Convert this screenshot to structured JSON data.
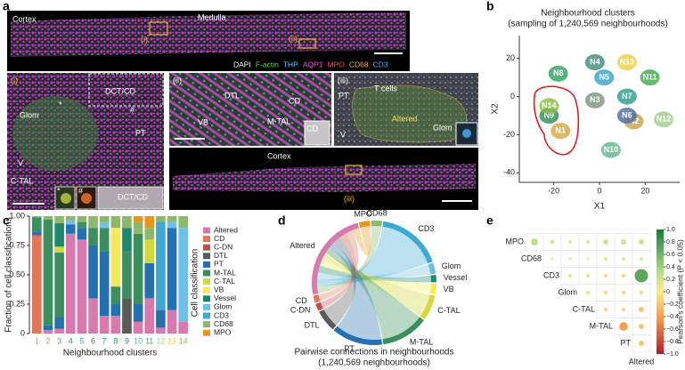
{
  "panel_letters": [
    "a",
    "b",
    "c",
    "d",
    "e"
  ],
  "image_panel": {
    "overview": [
      "Cortex",
      "Medulla",
      "(i)",
      "(ii)"
    ],
    "channels": {
      "names": [
        "DAPI",
        "F-actin",
        "THP",
        "AQP1",
        "MPO",
        "CD68",
        "CD3"
      ],
      "colors": [
        "#ffffff",
        "#57e05a",
        "#62c8ff",
        "#ff54e4",
        "#ff4d4d",
        "#ffb13b",
        "#49b3ff"
      ]
    },
    "panel_i": [
      "(i)",
      "DCT/CD",
      "Glom",
      "*",
      "#",
      "PT",
      "V",
      "C-TAL",
      "*",
      "#",
      "DCT/CD"
    ],
    "panel_ii": [
      "(ii)",
      "DTL",
      "CD",
      "M-TAL",
      "VB",
      "CD"
    ],
    "panel_iii": [
      "(iii)",
      "PT",
      "T cells",
      "Altered",
      "V",
      "Glom"
    ],
    "cortex_strip": [
      "Cortex",
      "(iii)"
    ]
  },
  "chart_data": [
    {
      "type": "scatter",
      "title": "Neighbourhood clusters",
      "subtitle": "(sampling of 1,240,569 neighbourhoods)",
      "x_label": "X1",
      "y_label": "X2",
      "categories": [
        "N1",
        "N2",
        "N3",
        "N4",
        "N5",
        "N6",
        "N7",
        "N8",
        "N9",
        "N10",
        "N11",
        "N12",
        "N13",
        "N14"
      ],
      "x": [
        -17,
        15,
        -2,
        -2,
        2,
        12,
        12,
        -18,
        -22,
        5,
        22,
        28,
        12,
        -22
      ],
      "values": [
        -18,
        -13,
        -2,
        18,
        10,
        -10,
        0,
        12,
        -10,
        -28,
        10,
        -12,
        18,
        -5
      ],
      "colors": [
        "#d4a83a",
        "#c8a24a",
        "#7a927a",
        "#3f8a7a",
        "#3aa0c8",
        "#4a6a9a",
        "#2a9a8a",
        "#2aa35a",
        "#2e8b57",
        "#5ab88a",
        "#3daa4a",
        "#9fd08a",
        "#f0d03a",
        "#8fb84a"
      ],
      "xlim": [
        -35,
        35
      ],
      "ylim": [
        -45,
        32
      ],
      "xticks": [
        -20,
        0,
        20
      ],
      "yticks": [
        -40,
        -20,
        0,
        20
      ]
    },
    {
      "type": "stacked_bar",
      "y_label": "Fraction of cell classifications",
      "x_label": "Neighbourhood clusters",
      "legend_title": "Cell classification",
      "categories": [
        "1",
        "2",
        "3",
        "4",
        "5",
        "6",
        "7",
        "8",
        "9",
        "10",
        "11",
        "12",
        "13",
        "14"
      ],
      "ylim": [
        0,
        1
      ],
      "yticks": [
        0,
        0.25,
        {
          "value": 0.5,
          "label": "0.50"
        },
        0.75,
        {
          "value": 1,
          "label": "1.00"
        }
      ],
      "series": [
        {
          "name": "Altered",
          "color": "#d87aae",
          "values": [
            0,
            0.03,
            0.04,
            0.85,
            0.8,
            0.3,
            0.15,
            0.15,
            0,
            0.1,
            0.3,
            0.05,
            0.2,
            0.1
          ]
        },
        {
          "name": "CD",
          "color": "#e0775a",
          "values": [
            0.83,
            0,
            0,
            0,
            0,
            0,
            0,
            0,
            0,
            0,
            0,
            0,
            0,
            0
          ]
        },
        {
          "name": "C-DN",
          "color": "#c0504d",
          "values": [
            0.01,
            0,
            0,
            0,
            0,
            0,
            0,
            0,
            0,
            0,
            0,
            0,
            0,
            0
          ]
        },
        {
          "name": "DTL",
          "color": "#5a5a5a",
          "values": [
            0,
            0,
            0,
            0,
            0,
            0,
            0,
            0,
            0.3,
            0,
            0,
            0,
            0,
            0
          ]
        },
        {
          "name": "PT",
          "color": "#2470b0",
          "values": [
            0.03,
            0.04,
            0.1,
            0.08,
            0.1,
            0.45,
            0.55,
            0.1,
            0,
            0.15,
            0.3,
            0.15,
            0.7,
            0
          ]
        },
        {
          "name": "M-TAL",
          "color": "#3a8f5c",
          "values": [
            0.12,
            0.9,
            0.55,
            0,
            0.05,
            0.15,
            0.2,
            0.15,
            0.4,
            0.6,
            0,
            0,
            0,
            0
          ]
        },
        {
          "name": "C-TAL",
          "color": "#d4d83a",
          "values": [
            0,
            0,
            0.05,
            0,
            0,
            0,
            0,
            0,
            0,
            0,
            0.2,
            0,
            0,
            0
          ]
        },
        {
          "name": "VB",
          "color": "#f5ea5c",
          "values": [
            0,
            0,
            0,
            0,
            0,
            0,
            0,
            0.5,
            0,
            0,
            0,
            0,
            0,
            0
          ]
        },
        {
          "name": "Vessel",
          "color": "#1b8a6b",
          "values": [
            0,
            0,
            0.2,
            0,
            0,
            0,
            0,
            0,
            0.2,
            0,
            0,
            0,
            0,
            0
          ]
        },
        {
          "name": "Glom",
          "color": "#6ec1e4",
          "values": [
            0,
            0,
            0,
            0.03,
            0,
            0,
            0.05,
            0,
            0,
            0,
            0,
            0,
            0.05,
            0.8
          ]
        },
        {
          "name": "CD3",
          "color": "#3fa9d6",
          "values": [
            0,
            0,
            0,
            0,
            0,
            0,
            0,
            0,
            0,
            0,
            0,
            0.75,
            0,
            0
          ]
        },
        {
          "name": "CD68",
          "color": "#8db86b",
          "values": [
            0.01,
            0.03,
            0.06,
            0.04,
            0.05,
            0.1,
            0.05,
            0.1,
            0.1,
            0.1,
            0.1,
            0.05,
            0.05,
            0.1
          ]
        },
        {
          "name": "MPO",
          "color": "#e8951b",
          "values": [
            0,
            0,
            0,
            0,
            0,
            0,
            0,
            0,
            0,
            0.05,
            0.1,
            0,
            0,
            0
          ]
        }
      ]
    },
    {
      "type": "chord",
      "title": "Pairwise connections in neighbourhoods",
      "subtitle": "(1,240,569 neighbourhoods)",
      "categories": [
        "CD68",
        "CD3",
        "Glom",
        "Vessel",
        "VB",
        "C-TAL",
        "M-TAL",
        "PT",
        "DTL",
        "C-DN",
        "CD",
        "Altered",
        "MPO"
      ],
      "values": [
        3,
        18,
        3,
        2,
        3,
        7,
        13,
        14,
        6,
        2,
        2,
        25,
        3
      ],
      "colors": [
        "#8db86b",
        "#3fa9d6",
        "#6ec1e4",
        "#1b8a6b",
        "#f5ea5c",
        "#d4d83a",
        "#3a8f5c",
        "#2470b0",
        "#5a5a5a",
        "#c0504d",
        "#e0775a",
        "#d87aae",
        "#e8951b"
      ]
    },
    {
      "type": "correlation",
      "labels": [
        "MPO",
        "CD68",
        "CD3",
        "Glom",
        "C-TAL",
        "M-TAL",
        "PT",
        "Altered"
      ],
      "values": [
        [
          0.3,
          0.15,
          0.1,
          0.1,
          0.2,
          0.2,
          0.2
        ],
        [
          0.05,
          0.05,
          0.05,
          0.1,
          0.1,
          0.1
        ],
        [
          0.1,
          0.1,
          -0.1,
          -0.1,
          0.7
        ],
        [
          0.1,
          -0.1,
          -0.1,
          -0.1
        ],
        [
          -0.1,
          -0.1,
          -0.2
        ],
        [
          -0.4,
          -0.2
        ],
        [
          -0.2
        ]
      ],
      "colorbar_label": "Pearson's coefficient (P < 0.05)",
      "zlim": [
        -1,
        1
      ],
      "colorscale": [
        [
          -1,
          "#b2182b"
        ],
        [
          -0.4,
          "#f4a24a"
        ],
        [
          0,
          "#fde98b"
        ],
        [
          0.3,
          "#b8e08a"
        ],
        [
          1,
          "#1a7a3a"
        ]
      ],
      "zticks": [
        {
          "value": 1,
          "label": "1.0"
        },
        0.8,
        0.6,
        0.4,
        0.2,
        0,
        {
          "value": -0.2,
          "label": "−0.2"
        },
        {
          "value": -0.4,
          "label": "−0.4"
        },
        {
          "value": -0.6,
          "label": "−0.6"
        },
        {
          "value": -0.8,
          "label": "−0.8"
        },
        {
          "value": -1,
          "label": "−1.0"
        }
      ]
    }
  ]
}
